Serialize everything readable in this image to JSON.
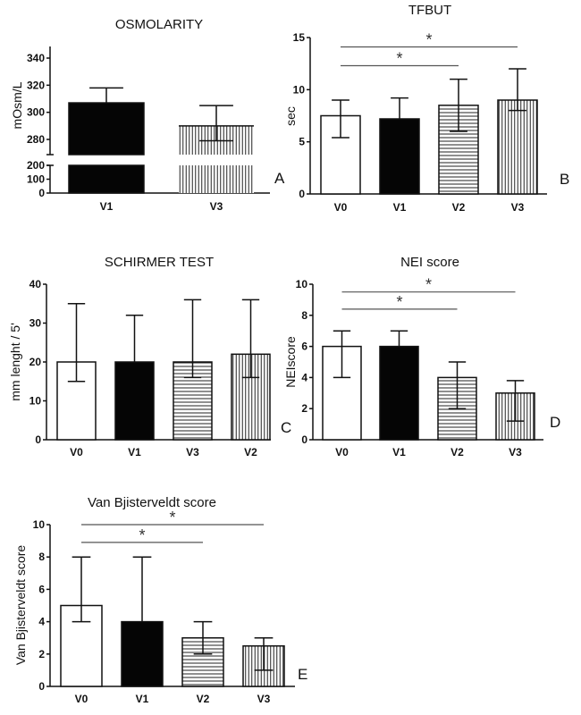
{
  "chart_data": [
    {
      "id": "A",
      "type": "bar",
      "title": "OSMOLARITY",
      "panel_label": "A",
      "xlabel": "",
      "ylabel": "mOsm/L",
      "categories": [
        "V1",
        "V3"
      ],
      "values": [
        307,
        290
      ],
      "error_high": [
        318,
        305
      ],
      "error_low": [
        null,
        279
      ],
      "fills": [
        "solid",
        "vertical"
      ],
      "ylim": [
        0,
        345
      ],
      "axis_break": true,
      "yticks_lower": [
        0,
        100,
        200
      ],
      "yticks_upper": [
        280,
        300,
        320,
        340
      ],
      "significance": []
    },
    {
      "id": "B",
      "type": "bar",
      "title": "TFBUT",
      "panel_label": "B",
      "xlabel": "",
      "ylabel": "sec",
      "categories": [
        "V0",
        "V1",
        "V2",
        "V3"
      ],
      "values": [
        7.5,
        7.2,
        8.5,
        9
      ],
      "error_high": [
        9,
        9.2,
        11,
        12
      ],
      "error_low": [
        5.4,
        null,
        6,
        8
      ],
      "fills": [
        "white",
        "solid",
        "horizontal",
        "vertical"
      ],
      "ylim": [
        0,
        15
      ],
      "yticks": [
        0,
        5,
        10,
        15
      ],
      "significance": [
        {
          "from": "V0",
          "to": "V3",
          "label": "*",
          "level": 14.1
        },
        {
          "from": "V0",
          "to": "V2",
          "label": "*",
          "level": 12.3
        }
      ]
    },
    {
      "id": "C",
      "type": "bar",
      "title": "SCHIRMER TEST",
      "panel_label": "C",
      "xlabel": "",
      "ylabel": "mm lenght / 5'",
      "categories": [
        "V0",
        "V1",
        "V3",
        "V2"
      ],
      "values": [
        20,
        20,
        20,
        22
      ],
      "error_high": [
        35,
        32,
        36,
        36
      ],
      "error_low": [
        15,
        null,
        16,
        16
      ],
      "fills": [
        "white",
        "solid",
        "horizontal",
        "vertical"
      ],
      "ylim": [
        0,
        40
      ],
      "yticks": [
        0,
        10,
        20,
        30,
        40
      ],
      "significance": []
    },
    {
      "id": "D",
      "type": "bar",
      "title": "NEI score",
      "panel_label": "D",
      "xlabel": "",
      "ylabel": "NEIscore",
      "categories": [
        "V0",
        "V1",
        "V2",
        "V3"
      ],
      "values": [
        6,
        6,
        4,
        3
      ],
      "error_high": [
        7,
        7,
        5,
        3.8
      ],
      "error_low": [
        4,
        null,
        2,
        1.2
      ],
      "fills": [
        "white",
        "solid",
        "horizontal",
        "vertical"
      ],
      "ylim": [
        0,
        10
      ],
      "yticks": [
        0,
        2,
        4,
        6,
        8,
        10
      ],
      "significance": [
        {
          "from": "V0",
          "to": "V3",
          "label": "*",
          "level": 9.5
        },
        {
          "from": "V0",
          "to": "V2",
          "label": "*",
          "level": 8.4
        }
      ]
    },
    {
      "id": "E",
      "type": "bar",
      "title": "Van Bjisterveldt score",
      "panel_label": "E",
      "xlabel": "",
      "ylabel": "Van Bjisterveldt score",
      "categories": [
        "V0",
        "V1",
        "V2",
        "V3"
      ],
      "values": [
        5,
        4,
        3,
        2.5
      ],
      "error_high": [
        8,
        8,
        4,
        3
      ],
      "error_low": [
        4,
        null,
        2,
        1
      ],
      "fills": [
        "white",
        "solid",
        "horizontal",
        "vertical"
      ],
      "ylim": [
        0,
        10
      ],
      "yticks": [
        0,
        2,
        4,
        6,
        8,
        10
      ],
      "significance": [
        {
          "from": "V0",
          "to": "V3",
          "label": "*",
          "level": 10
        },
        {
          "from": "V0",
          "to": "V2",
          "label": "*",
          "level": 8.9
        }
      ]
    }
  ]
}
